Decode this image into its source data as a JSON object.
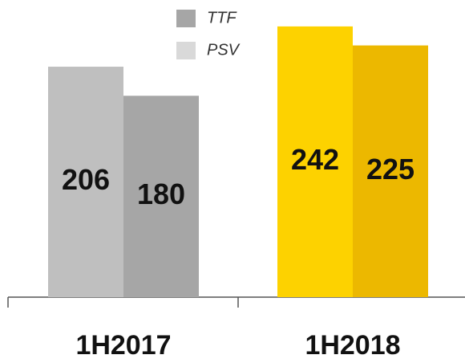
{
  "chart_data": {
    "type": "bar",
    "categories": [
      "1H2017",
      "1H2018"
    ],
    "series": [
      {
        "name": "PSV",
        "color": "#d9d9d9",
        "colors": [
          "#bfbfbf",
          "#fdd200"
        ],
        "values": [
          206,
          242
        ]
      },
      {
        "name": "TTF",
        "color": "#a6a6a6",
        "colors": [
          "#a6a6a6",
          "#ecb800"
        ],
        "values": [
          180,
          225
        ]
      }
    ]
  }
}
